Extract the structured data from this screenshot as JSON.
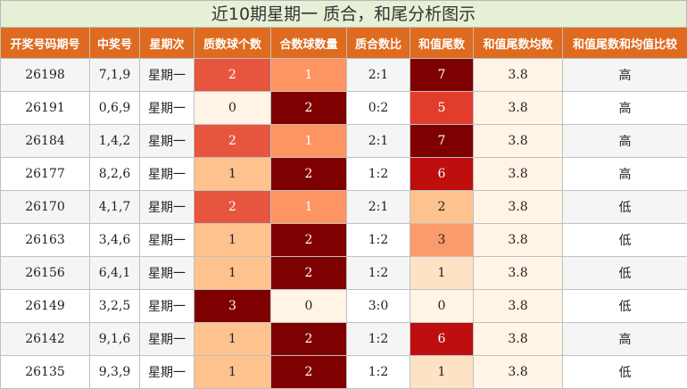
{
  "title": "近10期星期一 质合，和尾分析图示",
  "headers": [
    "开奖号码期号",
    "中奖号",
    "星期次",
    "质数球个数",
    "合数球数量",
    "质合数比",
    "和值尾数",
    "和值尾数均数",
    "和值尾数和均值比较"
  ],
  "rows": [
    {
      "issue": "26198",
      "numbers": "7,1,9",
      "weekday": "星期一",
      "prime_count": "2",
      "composite_count": "1",
      "ratio": "2:1",
      "sum_tail": "7",
      "avg": "3.8",
      "compare": "高"
    },
    {
      "issue": "26191",
      "numbers": "0,6,9",
      "weekday": "星期一",
      "prime_count": "0",
      "composite_count": "2",
      "ratio": "0:2",
      "sum_tail": "5",
      "avg": "3.8",
      "compare": "高"
    },
    {
      "issue": "26184",
      "numbers": "1,4,2",
      "weekday": "星期一",
      "prime_count": "2",
      "composite_count": "1",
      "ratio": "2:1",
      "sum_tail": "7",
      "avg": "3.8",
      "compare": "高"
    },
    {
      "issue": "26177",
      "numbers": "8,2,6",
      "weekday": "星期一",
      "prime_count": "1",
      "composite_count": "2",
      "ratio": "1:2",
      "sum_tail": "6",
      "avg": "3.8",
      "compare": "高"
    },
    {
      "issue": "26170",
      "numbers": "4,1,7",
      "weekday": "星期一",
      "prime_count": "2",
      "composite_count": "1",
      "ratio": "2:1",
      "sum_tail": "2",
      "avg": "3.8",
      "compare": "低"
    },
    {
      "issue": "26163",
      "numbers": "3,4,6",
      "weekday": "星期一",
      "prime_count": "1",
      "composite_count": "2",
      "ratio": "1:2",
      "sum_tail": "3",
      "avg": "3.8",
      "compare": "低"
    },
    {
      "issue": "26156",
      "numbers": "6,4,1",
      "weekday": "星期一",
      "prime_count": "1",
      "composite_count": "2",
      "ratio": "1:2",
      "sum_tail": "1",
      "avg": "3.8",
      "compare": "低"
    },
    {
      "issue": "26149",
      "numbers": "3,2,5",
      "weekday": "星期一",
      "prime_count": "3",
      "composite_count": "0",
      "ratio": "3:0",
      "sum_tail": "0",
      "avg": "3.8",
      "compare": "低"
    },
    {
      "issue": "26142",
      "numbers": "9,1,6",
      "weekday": "星期一",
      "prime_count": "1",
      "composite_count": "2",
      "ratio": "1:2",
      "sum_tail": "6",
      "avg": "3.8",
      "compare": "高"
    },
    {
      "issue": "26135",
      "numbers": "9,3,9",
      "weekday": "星期一",
      "prime_count": "1",
      "composite_count": "2",
      "ratio": "1:2",
      "sum_tail": "1",
      "avg": "3.8",
      "compare": "低"
    }
  ],
  "colors": {
    "header_bg": "#de6b1f",
    "title_bg": "#e5f0d6",
    "prime_scale": {
      "0": "#fff4e6",
      "1": "#fdc28e",
      "2": "#e8553e",
      "3": "#7f0000"
    },
    "composite_scale": {
      "0": "#fff4e6",
      "1": "#fd9461",
      "2": "#7f0000"
    },
    "tail_scale": {
      "0": "#fff4e6",
      "1": "#fee2c4",
      "2": "#fdc28e",
      "3": "#fb9a6b",
      "5": "#e23d2c",
      "6": "#be0e0e",
      "7": "#7f0000"
    }
  }
}
